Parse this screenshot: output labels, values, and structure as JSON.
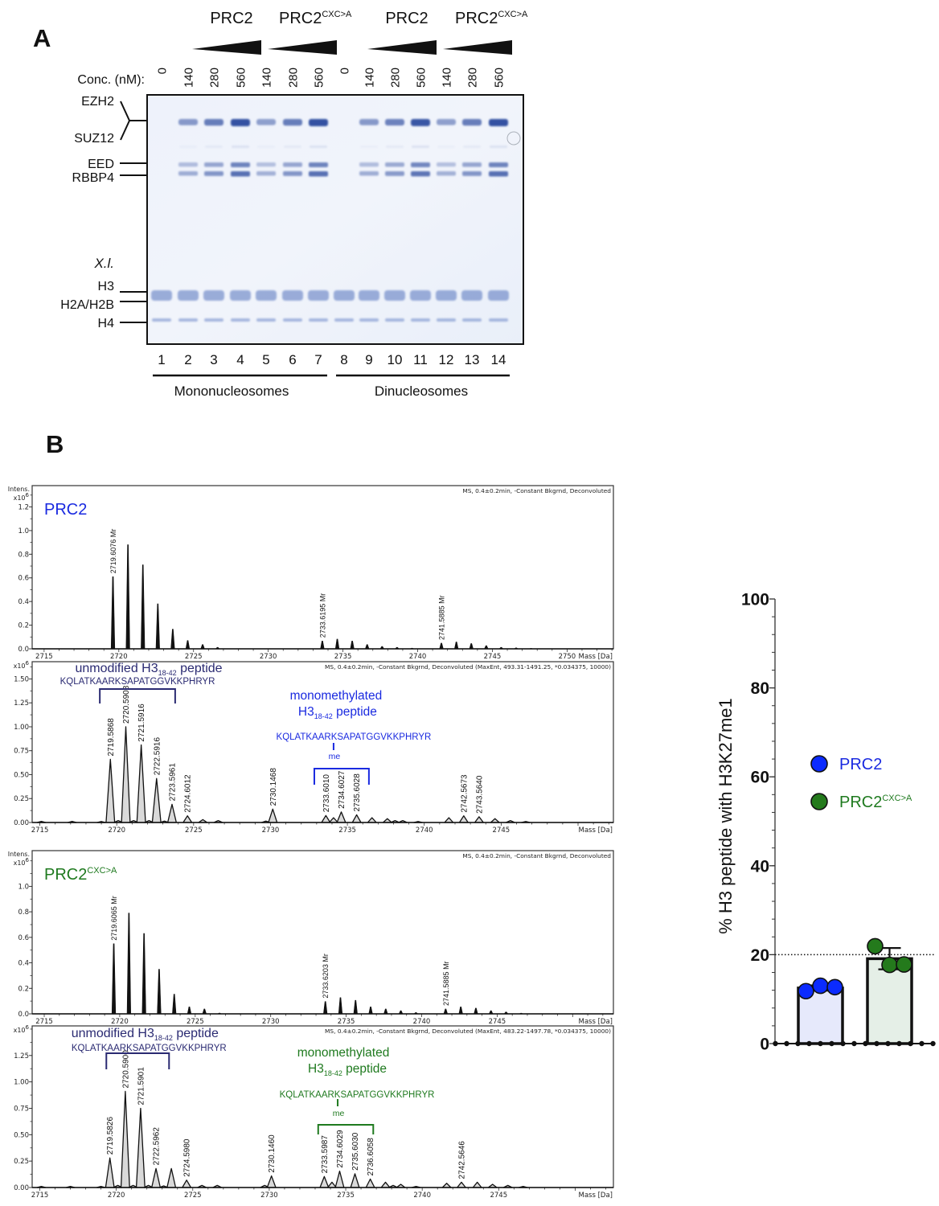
{
  "panel_a": {
    "label": "A",
    "groups": [
      {
        "name": "PRC2",
        "variant": ""
      },
      {
        "name": "PRC2",
        "variant": "CXC>A"
      },
      {
        "name": "PRC2",
        "variant": ""
      },
      {
        "name": "PRC2",
        "variant": "CXC>A"
      }
    ],
    "conc_label": "Conc. (nM):",
    "lanes": [
      {
        "number": "1",
        "conc": "0",
        "prc2_band": 0
      },
      {
        "number": "2",
        "conc": "140",
        "prc2_band": 0.35
      },
      {
        "number": "3",
        "conc": "280",
        "prc2_band": 0.6
      },
      {
        "number": "4",
        "conc": "560",
        "prc2_band": 1.0
      },
      {
        "number": "5",
        "conc": "140",
        "prc2_band": 0.3
      },
      {
        "number": "6",
        "conc": "280",
        "prc2_band": 0.6
      },
      {
        "number": "7",
        "conc": "560",
        "prc2_band": 1.0
      },
      {
        "number": "8",
        "conc": "0",
        "prc2_band": 0
      },
      {
        "number": "9",
        "conc": "140",
        "prc2_band": 0.35
      },
      {
        "number": "10",
        "conc": "280",
        "prc2_band": 0.55
      },
      {
        "number": "11",
        "conc": "560",
        "prc2_band": 0.95
      },
      {
        "number": "12",
        "conc": "140",
        "prc2_band": 0.3
      },
      {
        "number": "13",
        "conc": "280",
        "prc2_band": 0.6
      },
      {
        "number": "14",
        "conc": "560",
        "prc2_band": 1.0
      }
    ],
    "band_labels": {
      "ezh2": "EZH2",
      "suz12": "SUZ12",
      "eed": "EED",
      "rbbp4": "RBBP4",
      "species": "X.l.",
      "h3": "H3",
      "h2a_h2b": "H2A/H2B",
      "h4": "H4"
    },
    "substrates": [
      "Mononucleosomes",
      "Dinucleosomes"
    ],
    "band_color": "#2a4a9e"
  },
  "panel_b": {
    "label": "B"
  },
  "chart_data": [
    {
      "type": "line",
      "subtype": "mass_spectrum",
      "style": "raw",
      "title": "PRC2",
      "title_sup": "",
      "title_color": "#1a2ae0",
      "header": "MS, 0.4±0.2min, -Constant Bkgrnd, Deconvoluted",
      "ylabel": "Intens.",
      "yunit": "x10",
      "yunit_exp": "6",
      "xlabel": "Mass [Da]",
      "xlim": [
        2714.2,
        2753.1
      ],
      "ylim": [
        0,
        1.38
      ],
      "xticks": [
        2715,
        2720,
        2725,
        2730,
        2735,
        2740,
        2745,
        2750
      ],
      "xtick_labels": [
        "2715",
        "2720",
        "2725",
        "2730",
        "2735",
        "2740",
        "2745",
        "2750"
      ],
      "yticks": [
        0,
        0.2,
        0.4,
        0.6,
        0.8,
        1.0,
        1.2
      ],
      "ytick_labels": [
        "0.0",
        "0.2",
        "0.4",
        "0.6",
        "0.8",
        "1.0",
        "1.2"
      ],
      "ytick_minor_step": 0.1,
      "peaks": [
        {
          "mass": 2719.6076,
          "intensity": 0.61,
          "label": "2719.6076  Mr"
        },
        {
          "mass": 2720.61,
          "intensity": 0.88
        },
        {
          "mass": 2721.61,
          "intensity": 0.71
        },
        {
          "mass": 2722.61,
          "intensity": 0.38
        },
        {
          "mass": 2723.61,
          "intensity": 0.166
        },
        {
          "mass": 2724.61,
          "intensity": 0.07
        },
        {
          "mass": 2725.61,
          "intensity": 0.036
        },
        {
          "mass": 2726.61,
          "intensity": 0.012
        },
        {
          "mass": 2733.6195,
          "intensity": 0.066,
          "label": "2733.6195  Mr"
        },
        {
          "mass": 2734.62,
          "intensity": 0.082
        },
        {
          "mass": 2735.62,
          "intensity": 0.066
        },
        {
          "mass": 2736.62,
          "intensity": 0.036
        },
        {
          "mass": 2737.62,
          "intensity": 0.02
        },
        {
          "mass": 2738.62,
          "intensity": 0.012
        },
        {
          "mass": 2739.62,
          "intensity": 0.006
        },
        {
          "mass": 2741.5885,
          "intensity": 0.048,
          "label": "2741.5885  Mr"
        },
        {
          "mass": 2742.59,
          "intensity": 0.058
        },
        {
          "mass": 2743.59,
          "intensity": 0.045
        },
        {
          "mass": 2744.59,
          "intensity": 0.027
        },
        {
          "mass": 2745.59,
          "intensity": 0.012
        },
        {
          "mass": 2746.59,
          "intensity": 0.008
        },
        {
          "mass": 2747.59,
          "intensity": 0.004
        }
      ],
      "annotations": []
    },
    {
      "type": "line",
      "subtype": "mass_spectrum",
      "style": "deconvoluted",
      "title": "",
      "title_sup": "",
      "title_color": "#1a2ae0",
      "header": "MS, 0.4±0.2min, -Constant Bkgrnd, Deconvoluted (MaxEnt, 493.31-1491.25, *0.034375, 10000)",
      "ylabel": "",
      "yunit": "x10",
      "yunit_exp": "6",
      "xlabel": "Mass [Da]",
      "xlim": [
        2714.5,
        2752.3
      ],
      "ylim": [
        0,
        1.68
      ],
      "xticks": [
        2715,
        2720,
        2725,
        2730,
        2735,
        2740,
        2745
      ],
      "xtick_labels": [
        "2715",
        "2720",
        "2725",
        "2730",
        "2735",
        "2740",
        "2745"
      ],
      "yticks": [
        0,
        0.25,
        0.5,
        0.75,
        1.0,
        1.25,
        1.5
      ],
      "ytick_labels": [
        "0.00",
        "0.25",
        "0.50",
        "0.75",
        "1.00",
        "1.25",
        "1.50"
      ],
      "ytick_minor_step": 0.125,
      "peaks": [
        {
          "mass": 2715.1,
          "intensity": 0.012
        },
        {
          "mass": 2717.1,
          "intensity": 0.012
        },
        {
          "mass": 2719.0,
          "intensity": 0.01
        },
        {
          "mass": 2719.5868,
          "intensity": 0.66,
          "label": "2719.5868"
        },
        {
          "mass": 2720.1,
          "intensity": 0.02
        },
        {
          "mass": 2720.5908,
          "intensity": 1.0,
          "label": "2720.5908"
        },
        {
          "mass": 2721.1,
          "intensity": 0.02
        },
        {
          "mass": 2721.5916,
          "intensity": 0.81,
          "label": "2721.5916"
        },
        {
          "mass": 2722.1,
          "intensity": 0.02
        },
        {
          "mass": 2722.5916,
          "intensity": 0.46,
          "label": "2722.5916"
        },
        {
          "mass": 2723.1,
          "intensity": 0.015
        },
        {
          "mass": 2723.5961,
          "intensity": 0.19,
          "label": "2723.5961"
        },
        {
          "mass": 2724.6012,
          "intensity": 0.07,
          "label": "2724.6012"
        },
        {
          "mass": 2725.6,
          "intensity": 0.03
        },
        {
          "mass": 2726.6,
          "intensity": 0.02
        },
        {
          "mass": 2729.7,
          "intensity": 0.015
        },
        {
          "mass": 2730.1468,
          "intensity": 0.14,
          "label": "2730.1468"
        },
        {
          "mass": 2733.601,
          "intensity": 0.073,
          "label": "2733.6010"
        },
        {
          "mass": 2734.1,
          "intensity": 0.05
        },
        {
          "mass": 2734.6027,
          "intensity": 0.11,
          "label": "2734.6027"
        },
        {
          "mass": 2735.6028,
          "intensity": 0.08,
          "label": "2735.6028"
        },
        {
          "mass": 2736.6,
          "intensity": 0.05
        },
        {
          "mass": 2737.6,
          "intensity": 0.04
        },
        {
          "mass": 2738.1,
          "intensity": 0.02
        },
        {
          "mass": 2738.6,
          "intensity": 0.02
        },
        {
          "mass": 2739.6,
          "intensity": 0.01
        },
        {
          "mass": 2741.6,
          "intensity": 0.05
        },
        {
          "mass": 2742.5673,
          "intensity": 0.07,
          "label": "2742.5673"
        },
        {
          "mass": 2743.564,
          "intensity": 0.06,
          "label": "2743.5640"
        },
        {
          "mass": 2744.6,
          "intensity": 0.04
        },
        {
          "mass": 2745.6,
          "intensity": 0.02
        },
        {
          "mass": 2746.6,
          "intensity": 0.01
        }
      ],
      "annotations": [
        {
          "kind": "unmodified",
          "line1": "",
          "title": "unmodified H3",
          "sub": "18-42",
          "suffix": " peptide",
          "sequence": "KQLATKAARKSAPATGGVKKPHRYR",
          "mark": "",
          "color": "#2a2a72",
          "bracket": [
            2718.9,
            2723.8
          ]
        },
        {
          "kind": "monomethylated",
          "line1": "monomethylated",
          "title": "H3",
          "sub": "18-42",
          "suffix": " peptide",
          "sequence": "KQLATKAARKSAPATGGVKKPHRYR",
          "mark": "me",
          "color": "#1a2ae0",
          "bracket": [
            2732.85,
            2736.4
          ]
        }
      ]
    },
    {
      "type": "line",
      "subtype": "mass_spectrum",
      "style": "raw",
      "title": "PRC2",
      "title_sup": "CXC>A",
      "title_color": "#1f7a1f",
      "header": "MS, 0.4±0.2min, -Constant Bkgrnd, Deconvoluted",
      "ylabel": "Intens.",
      "yunit": "x10",
      "yunit_exp": "6",
      "xlabel": "Mass [Da]",
      "xlim": [
        2714.2,
        2752.7
      ],
      "ylim": [
        0,
        1.28
      ],
      "xticks": [
        2715,
        2720,
        2725,
        2730,
        2735,
        2740,
        2745
      ],
      "xtick_labels": [
        "2715",
        "2720",
        "2725",
        "2730",
        "2735",
        "2740",
        "2745"
      ],
      "yticks": [
        0,
        0.2,
        0.4,
        0.6,
        0.8,
        1.0
      ],
      "ytick_labels": [
        "0.0",
        "0.2",
        "0.4",
        "0.6",
        "0.8",
        "1.0"
      ],
      "ytick_minor_step": 0.1,
      "peaks": [
        {
          "mass": 2719.6065,
          "intensity": 0.55,
          "label": "2719.6065  Mr"
        },
        {
          "mass": 2720.61,
          "intensity": 0.79
        },
        {
          "mass": 2721.61,
          "intensity": 0.63
        },
        {
          "mass": 2722.61,
          "intensity": 0.35
        },
        {
          "mass": 2723.61,
          "intensity": 0.154
        },
        {
          "mass": 2724.61,
          "intensity": 0.055
        },
        {
          "mass": 2725.61,
          "intensity": 0.038
        },
        {
          "mass": 2726.61,
          "intensity": 0.006
        },
        {
          "mass": 2733.6203,
          "intensity": 0.097,
          "label": "2733.6203  Mr"
        },
        {
          "mass": 2734.62,
          "intensity": 0.127
        },
        {
          "mass": 2735.62,
          "intensity": 0.106
        },
        {
          "mass": 2736.62,
          "intensity": 0.055
        },
        {
          "mass": 2737.62,
          "intensity": 0.038
        },
        {
          "mass": 2738.62,
          "intensity": 0.025
        },
        {
          "mass": 2739.62,
          "intensity": 0.01
        },
        {
          "mass": 2741.5885,
          "intensity": 0.038,
          "label": "2741.5885  Mr"
        },
        {
          "mass": 2742.59,
          "intensity": 0.055
        },
        {
          "mass": 2743.59,
          "intensity": 0.045
        },
        {
          "mass": 2744.59,
          "intensity": 0.025
        },
        {
          "mass": 2745.59,
          "intensity": 0.015
        },
        {
          "mass": 2746.59,
          "intensity": 0.005
        }
      ],
      "annotations": []
    },
    {
      "type": "line",
      "subtype": "mass_spectrum",
      "style": "deconvoluted",
      "title": "",
      "title_sup": "",
      "title_color": "#1f7a1f",
      "header": "MS, 0.4±0.2min, -Constant Bkgrnd, Deconvoluted (MaxEnt, 483.22-1497.78, *0.034375, 10000)",
      "ylabel": "",
      "yunit": "x10",
      "yunit_exp": "6",
      "xlabel": "Mass [Da]",
      "xlim": [
        2714.5,
        2752.5
      ],
      "ylim": [
        0,
        1.53
      ],
      "xticks": [
        2715,
        2720,
        2725,
        2730,
        2735,
        2740,
        2745
      ],
      "xtick_labels": [
        "2715",
        "2720",
        "2725",
        "2730",
        "2735",
        "2740",
        "2745"
      ],
      "yticks": [
        0,
        0.25,
        0.5,
        0.75,
        1.0,
        1.25
      ],
      "ytick_labels": [
        "0.00",
        "0.25",
        "0.50",
        "0.75",
        "1.00",
        "1.25"
      ],
      "ytick_minor_step": 0.125,
      "peaks": [
        {
          "mass": 2715.1,
          "intensity": 0.01
        },
        {
          "mass": 2717.0,
          "intensity": 0.01
        },
        {
          "mass": 2719.0,
          "intensity": 0.01
        },
        {
          "mass": 2719.5826,
          "intensity": 0.28,
          "label": "2719.5826"
        },
        {
          "mass": 2720.1,
          "intensity": 0.02
        },
        {
          "mass": 2720.59,
          "intensity": 0.91,
          "label": "2720.5900"
        },
        {
          "mass": 2721.1,
          "intensity": 0.02
        },
        {
          "mass": 2721.5901,
          "intensity": 0.75,
          "label": "2721.5901"
        },
        {
          "mass": 2722.1,
          "intensity": 0.02
        },
        {
          "mass": 2722.5962,
          "intensity": 0.18,
          "label": "2722.5962"
        },
        {
          "mass": 2723.1,
          "intensity": 0.015
        },
        {
          "mass": 2723.6,
          "intensity": 0.18
        },
        {
          "mass": 2724.598,
          "intensity": 0.07,
          "label": "2724.5980"
        },
        {
          "mass": 2725.6,
          "intensity": 0.02
        },
        {
          "mass": 2726.6,
          "intensity": 0.02
        },
        {
          "mass": 2729.7,
          "intensity": 0.02
        },
        {
          "mass": 2730.146,
          "intensity": 0.11,
          "label": "2730.1460"
        },
        {
          "mass": 2733.5987,
          "intensity": 0.104,
          "label": "2733.5987"
        },
        {
          "mass": 2734.1,
          "intensity": 0.05
        },
        {
          "mass": 2734.6029,
          "intensity": 0.155,
          "label": "2734.6029"
        },
        {
          "mass": 2735.603,
          "intensity": 0.13,
          "label": "2735.6030"
        },
        {
          "mass": 2736.6058,
          "intensity": 0.08,
          "label": "2736.6058"
        },
        {
          "mass": 2737.6,
          "intensity": 0.05
        },
        {
          "mass": 2738.1,
          "intensity": 0.02
        },
        {
          "mass": 2738.6,
          "intensity": 0.03
        },
        {
          "mass": 2739.6,
          "intensity": 0.01
        },
        {
          "mass": 2741.6,
          "intensity": 0.04
        },
        {
          "mass": 2742.5646,
          "intensity": 0.05,
          "label": "2742.5646"
        },
        {
          "mass": 2743.6,
          "intensity": 0.05
        },
        {
          "mass": 2744.6,
          "intensity": 0.03
        },
        {
          "mass": 2745.6,
          "intensity": 0.02
        },
        {
          "mass": 2746.6,
          "intensity": 0.01
        }
      ],
      "annotations": [
        {
          "kind": "unmodified",
          "line1": "",
          "title": "unmodified H3",
          "sub": "18-42",
          "suffix": " peptide",
          "sequence": "KQLATKAARKSAPATGGVKKPHRYR",
          "mark": "",
          "color": "#2a2a72",
          "bracket": [
            2719.35,
            2723.45
          ]
        },
        {
          "kind": "monomethylated",
          "line1": "monomethylated",
          "title": "H3",
          "sub": "18-42",
          "suffix": " peptide",
          "sequence": "KQLATKAARKSAPATGGVKKPHRYR",
          "mark": "me",
          "color": "#1f7a1f",
          "bracket": [
            2733.2,
            2736.8
          ]
        }
      ]
    },
    {
      "type": "bar",
      "categories": [
        "PRC2",
        "PRC2CXC>A"
      ],
      "legend": [
        {
          "name": "PRC2",
          "sup": "",
          "color": "#0b2bff",
          "text_color": "#1a2ae0"
        },
        {
          "name": "PRC2",
          "sup": "CXC>A",
          "color": "#247a1c",
          "text_color": "#1f7a1f"
        }
      ],
      "legend_position": "right",
      "values": [
        12.5,
        19.1
      ],
      "sd": [
        0.6,
        2.4
      ],
      "points": [
        [
          11.8,
          13.0,
          12.7
        ],
        [
          21.9,
          17.7,
          17.8
        ]
      ],
      "bar_fill": [
        "#e6e9fb",
        "#e5efe7"
      ],
      "ylabel": "% H3 peptide with H3K27me1",
      "xlabel": "",
      "ylim": [
        0,
        100
      ],
      "yticks": [
        0,
        20,
        40,
        60,
        80,
        100
      ],
      "ytick_labels": [
        "0",
        "20",
        "40",
        "60",
        "80",
        "100"
      ],
      "ytick_minor_step": 4,
      "reference_line": 20,
      "grid": false
    }
  ]
}
